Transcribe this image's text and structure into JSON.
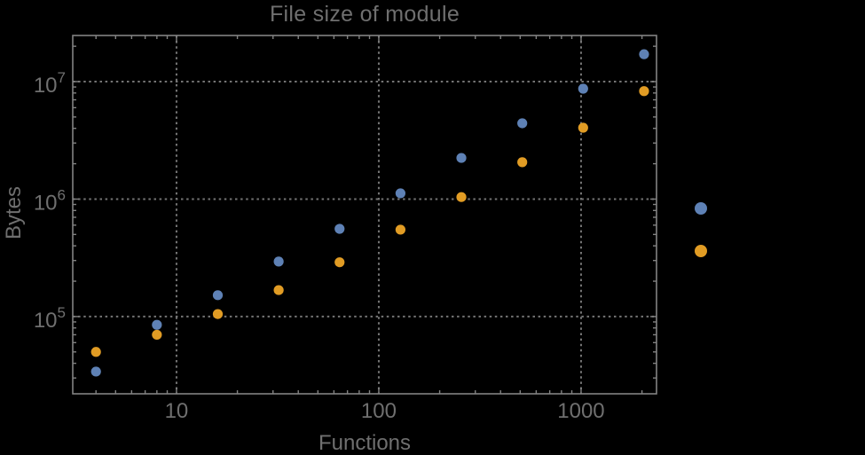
{
  "title": "File size of module",
  "colors": {
    "background": "#000000",
    "frame": "#828282",
    "grid": "#757575",
    "text": "#6f6f6f",
    "series_blue": "#5e81b5",
    "series_orange": "#e19c24"
  },
  "chart_data": {
    "type": "scatter",
    "title": "File size of module",
    "xlabel": "Functions",
    "ylabel": "Bytes",
    "x_scale": "log",
    "y_scale": "log",
    "xlim": [
      3.07,
      2360
    ],
    "ylim": [
      22000,
      24700000
    ],
    "grid": {
      "x": [
        10,
        100,
        1000
      ],
      "y": [
        100000,
        1000000,
        10000000
      ]
    },
    "x_ticks": [
      {
        "value": 10,
        "label": "10"
      },
      {
        "value": 100,
        "label": "100"
      },
      {
        "value": 1000,
        "label": "1000"
      }
    ],
    "x_minor_ticks": [
      4,
      5,
      6,
      7,
      8,
      9,
      20,
      30,
      40,
      50,
      60,
      70,
      80,
      90,
      200,
      300,
      400,
      500,
      600,
      700,
      800,
      900,
      2000
    ],
    "y_ticks": [
      {
        "value": 100000,
        "mantissa": "10",
        "exponent": "5"
      },
      {
        "value": 1000000,
        "mantissa": "10",
        "exponent": "6"
      },
      {
        "value": 10000000,
        "mantissa": "10",
        "exponent": "7"
      }
    ],
    "y_minor_ticks": [
      30000,
      40000,
      50000,
      60000,
      70000,
      80000,
      90000,
      200000,
      300000,
      400000,
      500000,
      600000,
      700000,
      800000,
      900000,
      2000000,
      3000000,
      4000000,
      5000000,
      6000000,
      7000000,
      8000000,
      9000000,
      20000000
    ],
    "x": [
      4,
      8,
      16,
      32,
      64,
      128,
      256,
      512,
      1024,
      2048
    ],
    "series": [
      {
        "name": "series-1-blue",
        "color": "#5e81b5",
        "values": [
          34000,
          85000,
          152000,
          294000,
          558000,
          1120000,
          2240000,
          4420000,
          8700000,
          17100000
        ]
      },
      {
        "name": "series-2-orange",
        "color": "#e19c24",
        "values": [
          50000,
          70000,
          105000,
          168000,
          290000,
          549000,
          1040000,
          2060000,
          4050000,
          8300000
        ]
      }
    ],
    "legend": {
      "position": "right-outside",
      "items": [
        {
          "color": "#5e81b5",
          "label": ""
        },
        {
          "color": "#e19c24",
          "label": ""
        }
      ]
    }
  }
}
